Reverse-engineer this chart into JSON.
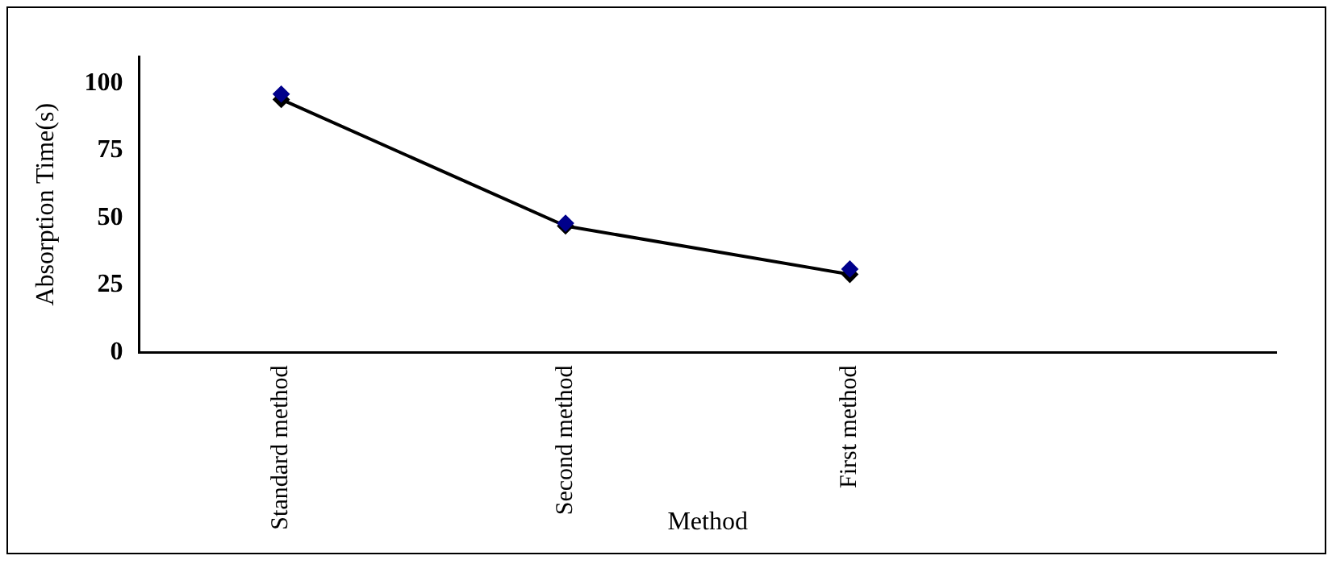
{
  "chart_data": {
    "type": "line",
    "xlabel": "Method",
    "ylabel": "Absorption Time(s)",
    "categories": [
      "Standard method",
      "Second method",
      "First method",
      null
    ],
    "series": [
      {
        "type": "line",
        "color": "#000000",
        "values": [
          94,
          47,
          29,
          null
        ]
      },
      {
        "type": "scatter",
        "color": "#00008b",
        "values": [
          96,
          48,
          31,
          null
        ]
      }
    ],
    "ylim": [
      0,
      110
    ],
    "yticks": [
      0,
      25,
      50,
      75,
      100
    ],
    "grid": false,
    "legend": false,
    "marker": "diamond",
    "line_style": "solid"
  }
}
